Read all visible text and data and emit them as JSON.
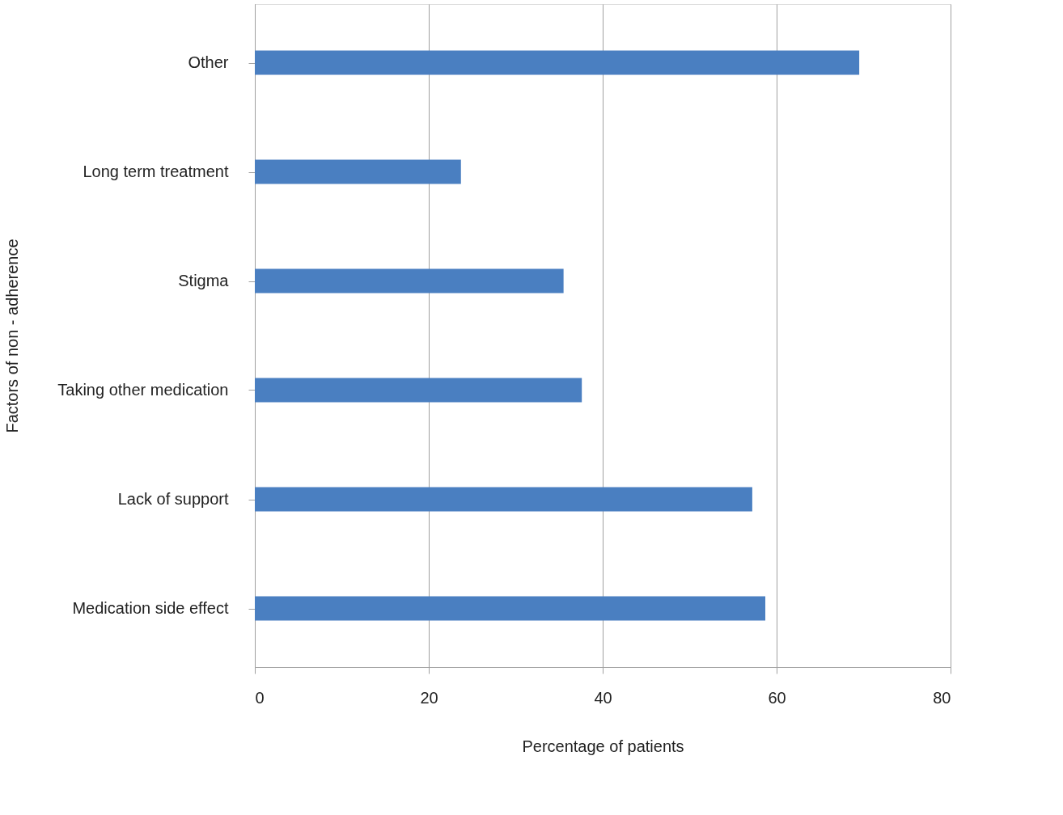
{
  "chart_data": {
    "type": "bar",
    "orientation": "horizontal",
    "xlabel": "Percentage of patients",
    "ylabel": "Factors of non - adherence",
    "categories": [
      "Other",
      "Long term treatment",
      "Stigma",
      "Taking other medication",
      "Lack of support",
      "Medication side effect"
    ],
    "values": [
      69.5,
      23.7,
      35.5,
      37.6,
      57.2,
      58.7
    ],
    "color": "#4a7fc1",
    "xlim": [
      0,
      80
    ],
    "xticks": [
      0,
      20,
      40,
      60,
      80
    ],
    "grid": "x"
  }
}
